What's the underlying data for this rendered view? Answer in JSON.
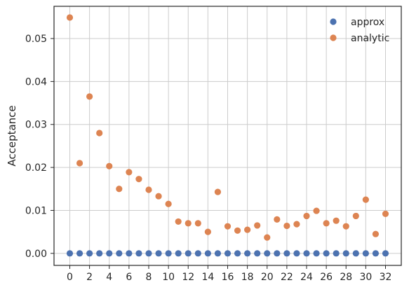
{
  "chart_data": {
    "type": "scatter",
    "title": "",
    "xlabel": "",
    "ylabel": "Acceptance",
    "xlim": [
      -1.6,
      33.6
    ],
    "ylim": [
      -0.0028,
      0.0575
    ],
    "xticks": [
      0,
      2,
      4,
      6,
      8,
      10,
      12,
      14,
      16,
      18,
      20,
      22,
      24,
      26,
      28,
      30,
      32
    ],
    "xtick_labels": [
      "0",
      "2",
      "4",
      "6",
      "8",
      "10",
      "12",
      "14",
      "16",
      "18",
      "20",
      "22",
      "24",
      "26",
      "28",
      "30",
      "32"
    ],
    "yticks": [
      0.0,
      0.01,
      0.02,
      0.03,
      0.04,
      0.05
    ],
    "ytick_labels": [
      "0.00",
      "0.01",
      "0.02",
      "0.03",
      "0.04",
      "0.05"
    ],
    "grid": true,
    "legend_position": "top-right",
    "series": [
      {
        "name": "approx",
        "color": "#4c72b0",
        "x": [
          0,
          1,
          2,
          3,
          4,
          5,
          6,
          7,
          8,
          9,
          10,
          11,
          12,
          13,
          14,
          15,
          16,
          17,
          18,
          19,
          20,
          21,
          22,
          23,
          24,
          25,
          26,
          27,
          28,
          29,
          30,
          31,
          32
        ],
        "y": [
          0,
          0,
          0,
          0,
          0,
          0,
          0,
          0,
          0,
          0,
          0,
          0,
          0,
          0,
          0,
          0,
          0,
          0,
          0,
          0,
          0,
          0,
          0,
          0,
          0,
          0,
          0,
          0,
          0,
          0,
          0,
          0,
          0
        ]
      },
      {
        "name": "analytic",
        "color": "#dd8452",
        "x": [
          0,
          1,
          2,
          3,
          4,
          5,
          6,
          7,
          8,
          9,
          10,
          11,
          12,
          13,
          14,
          15,
          16,
          17,
          18,
          19,
          20,
          21,
          22,
          23,
          24,
          25,
          26,
          27,
          28,
          29,
          30,
          31,
          32
        ],
        "y": [
          0.0549,
          0.021,
          0.0365,
          0.028,
          0.0203,
          0.015,
          0.0189,
          0.0173,
          0.0148,
          0.0133,
          0.0115,
          0.0074,
          0.007,
          0.007,
          0.005,
          0.0143,
          0.0063,
          0.0053,
          0.0055,
          0.0065,
          0.0037,
          0.0079,
          0.0064,
          0.0068,
          0.0087,
          0.0099,
          0.007,
          0.0076,
          0.0063,
          0.0087,
          0.0125,
          0.0045,
          0.0092
        ]
      }
    ]
  }
}
